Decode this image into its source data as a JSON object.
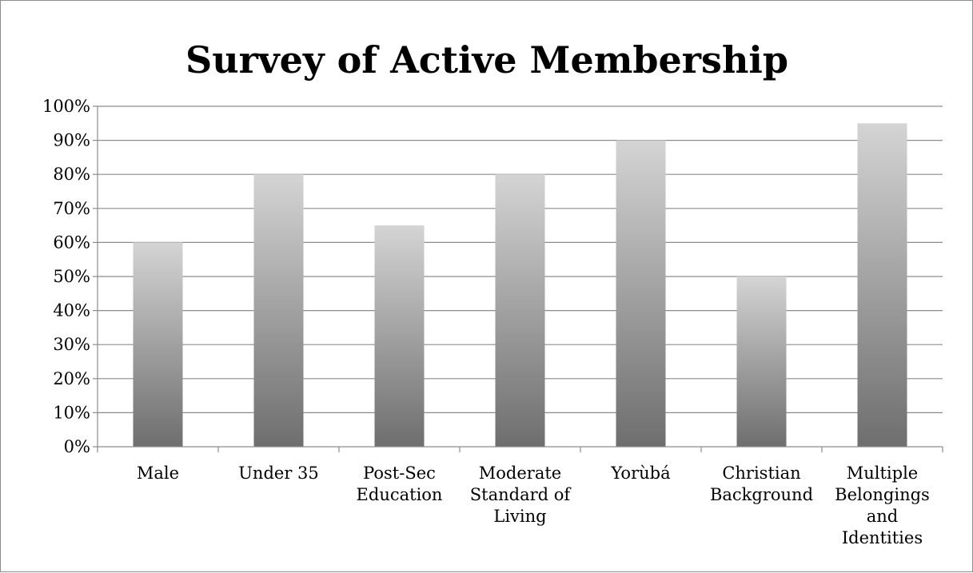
{
  "chart_data": {
    "type": "bar",
    "title": "Survey of Active Membership",
    "xlabel": "",
    "ylabel": "",
    "categories": [
      [
        "Male"
      ],
      [
        "Under 35"
      ],
      [
        "Post-Sec",
        "Education"
      ],
      [
        "Moderate",
        "Standard of",
        "Living"
      ],
      [
        "Yorùbá"
      ],
      [
        "Christian",
        "Background"
      ],
      [
        "Multiple",
        "Belongings",
        "and",
        "Identities"
      ]
    ],
    "values": [
      0.6,
      0.8,
      0.65,
      0.8,
      0.9,
      0.5,
      0.95
    ],
    "ylim": [
      0,
      1
    ],
    "yticks": [
      0,
      0.1,
      0.2,
      0.3,
      0.4,
      0.5,
      0.6,
      0.7,
      0.8,
      0.9,
      1.0
    ],
    "ytick_labels": [
      "0%",
      "10%",
      "20%",
      "30%",
      "40%",
      "50%",
      "60%",
      "70%",
      "80%",
      "90%",
      "100%"
    ],
    "grid": true,
    "legend": "none",
    "colors": {
      "bar_light": "#d4d4d4",
      "bar_dark": "#6e6e6e",
      "grid": "#8c8c8c",
      "axis": "#8c8c8c"
    }
  }
}
